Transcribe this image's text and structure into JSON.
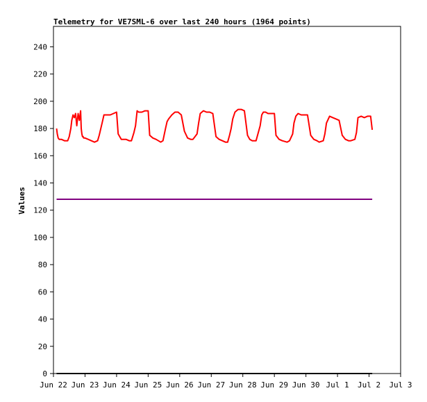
{
  "chart_data": {
    "type": "line",
    "title": "Telemetry for VE7SML-6 over last 240 hours (1964 points)",
    "ylabel": "Values",
    "xlabel": "",
    "ylim": [
      0,
      255
    ],
    "xlim": [
      0,
      11
    ],
    "grid": false,
    "legend": "none",
    "y_ticks": [
      0,
      20,
      40,
      60,
      80,
      100,
      120,
      140,
      160,
      180,
      200,
      220,
      240
    ],
    "x_ticks": [
      {
        "x": 0,
        "label": "Jun 22"
      },
      {
        "x": 1,
        "label": "Jun 23"
      },
      {
        "x": 2,
        "label": "Jun 24"
      },
      {
        "x": 3,
        "label": "Jun 25"
      },
      {
        "x": 4,
        "label": "Jun 26"
      },
      {
        "x": 5,
        "label": "Jun 27"
      },
      {
        "x": 6,
        "label": "Jun 28"
      },
      {
        "x": 7,
        "label": "Jun 29"
      },
      {
        "x": 8,
        "label": "Jun 30"
      },
      {
        "x": 9,
        "label": "Jul 1"
      },
      {
        "x": 10,
        "label": "Jul 2"
      },
      {
        "x": 11,
        "label": "Jul 3"
      }
    ],
    "series": [
      {
        "color": "#ff0000",
        "x": [
          0.1,
          0.12,
          0.15,
          0.18,
          0.25,
          0.35,
          0.45,
          0.5,
          0.55,
          0.58,
          0.62,
          0.66,
          0.7,
          0.74,
          0.78,
          0.82,
          0.86,
          0.88,
          0.9,
          0.92,
          0.94,
          0.96,
          1.0,
          1.1,
          1.2,
          1.3,
          1.4,
          1.45,
          1.55,
          1.6,
          1.65,
          1.7,
          1.8,
          1.9,
          2.0,
          2.05,
          2.15,
          2.3,
          2.4,
          2.47,
          2.55,
          2.6,
          2.65,
          2.7,
          2.8,
          2.9,
          3.0,
          3.05,
          3.15,
          3.25,
          3.4,
          3.47,
          3.55,
          3.6,
          3.65,
          3.75,
          3.85,
          3.95,
          4.05,
          4.15,
          4.25,
          4.35,
          4.42,
          4.55,
          4.6,
          4.65,
          4.75,
          4.85,
          4.95,
          5.05,
          5.15,
          5.25,
          5.35,
          5.45,
          5.52,
          5.58,
          5.63,
          5.68,
          5.75,
          5.85,
          5.95,
          6.05,
          6.15,
          6.22,
          6.3,
          6.42,
          6.55,
          6.6,
          6.65,
          6.72,
          6.8,
          6.9,
          7.0,
          7.05,
          7.15,
          7.25,
          7.4,
          7.48,
          7.58,
          7.62,
          7.68,
          7.75,
          7.85,
          7.95,
          8.05,
          8.15,
          8.25,
          8.35,
          8.42,
          8.55,
          8.6,
          8.65,
          8.75,
          8.85,
          8.95,
          9.05,
          9.15,
          9.25,
          9.35,
          9.42,
          9.55,
          9.6,
          9.65,
          9.75,
          9.85,
          9.95,
          10.05,
          10.1
        ],
        "values": [
          180,
          176,
          173,
          172,
          172,
          171,
          171,
          174,
          180,
          186,
          190,
          188,
          191,
          182,
          191,
          186,
          193,
          180,
          176,
          174,
          174,
          173,
          173,
          172,
          171,
          170,
          171,
          175,
          185,
          190,
          190,
          190,
          190,
          191,
          192,
          176,
          172,
          172,
          171,
          171,
          177,
          182,
          193,
          192,
          192,
          193,
          193,
          175,
          173,
          172,
          170,
          171,
          180,
          185,
          187,
          190,
          192,
          192,
          190,
          178,
          173,
          172,
          172,
          176,
          184,
          191,
          193,
          192,
          192,
          191,
          174,
          172,
          171,
          170,
          170,
          175,
          180,
          187,
          192,
          194,
          194,
          193,
          175,
          172,
          171,
          171,
          182,
          190,
          192,
          192,
          191,
          191,
          191,
          175,
          172,
          171,
          170,
          171,
          176,
          184,
          189,
          191,
          190,
          190,
          190,
          175,
          172,
          171,
          170,
          171,
          176,
          184,
          189,
          188,
          187,
          186,
          175,
          172,
          171,
          171,
          172,
          177,
          188,
          189,
          188,
          189,
          189,
          179
        ]
      },
      {
        "color": "#800080",
        "x": [
          0.1,
          10.1
        ],
        "values": [
          128,
          128
        ]
      },
      {
        "color": "#000000",
        "x": [
          0.1,
          10.1
        ],
        "values": [
          0,
          0
        ]
      }
    ]
  }
}
